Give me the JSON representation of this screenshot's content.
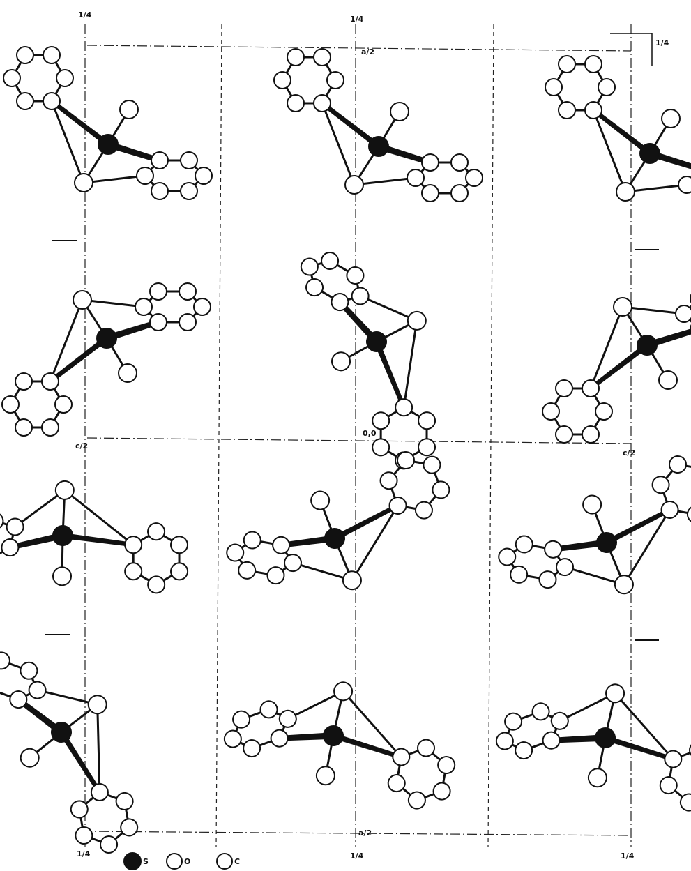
{
  "axis_labels": [
    "1/4",
    "1/4",
    "a/2",
    "1/4",
    "c/2",
    "0,0",
    "c/2",
    "a/2",
    "1/4",
    "1/4",
    "1/4"
  ],
  "legend": [
    {
      "label": "S"
    },
    {
      "label": "O"
    },
    {
      "label": "C"
    }
  ]
}
